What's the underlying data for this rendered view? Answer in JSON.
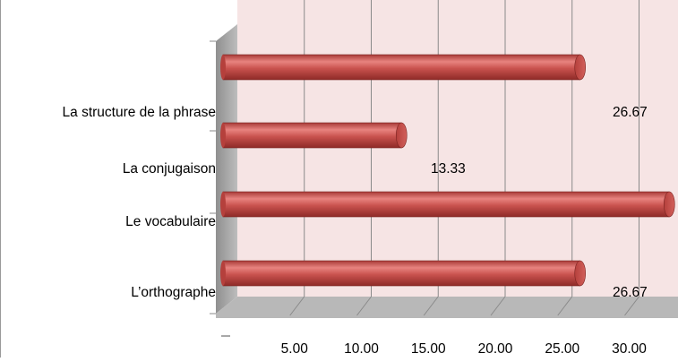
{
  "chart_data": {
    "type": "bar",
    "orientation": "horizontal",
    "style": "3d-cylinder",
    "categories": [
      "L’orthographe",
      "Le vocabulaire",
      "La conjugaison",
      "La structure de la phrase"
    ],
    "values": [
      26.67,
      33.33,
      13.33,
      26.67
    ],
    "data_labels": [
      "26.67",
      "",
      "13.33",
      "26.67"
    ],
    "xticks": [
      "5.00",
      "10.00",
      "15.00",
      "20.00",
      "25.00",
      "30.00"
    ],
    "xlim": [
      0,
      33.33
    ],
    "title": "",
    "xlabel": "",
    "ylabel": "",
    "grid": true,
    "legend": "none",
    "colors": {
      "bar": "#c0504d",
      "bar_light": "#e8837f",
      "bar_dark": "#8e2a27",
      "plot_background": "#f6e4e4",
      "floor": "#b8b8b8",
      "side_wall": "#a5a5a5",
      "grid": "#8a8a8a"
    }
  }
}
